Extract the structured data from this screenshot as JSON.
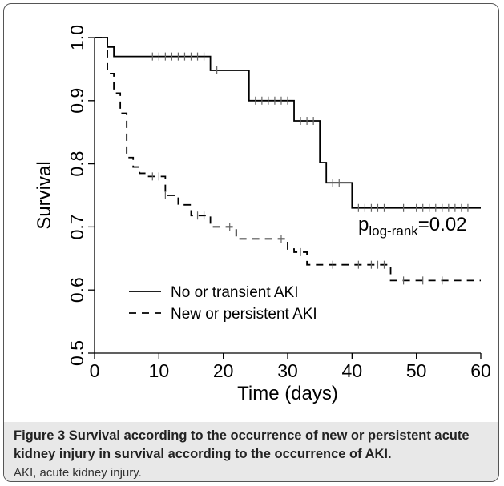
{
  "chart_data": {
    "type": "line",
    "subtype": "kaplan-meier step survival curve",
    "xlabel": "Time (days)",
    "ylabel": "Survival",
    "xlim": [
      0,
      60
    ],
    "ylim": [
      0.5,
      1.0
    ],
    "xticks": [
      "0",
      "10",
      "20",
      "30",
      "40",
      "50",
      "60"
    ],
    "yticks": [
      "0.5",
      "0.6",
      "0.7",
      "0.8",
      "0.9",
      "1.0"
    ],
    "annotation": {
      "p_base": "p",
      "p_subscript": "log-rank",
      "p_value": "=0.02"
    },
    "legend_position": "bottom-left",
    "series": [
      {
        "name": "No or transient AKI",
        "line_style": "solid",
        "color": "#000000",
        "steps": [
          [
            0,
            1.0
          ],
          [
            2,
            0.985
          ],
          [
            3,
            0.97
          ],
          [
            18,
            0.948
          ],
          [
            24,
            0.9
          ],
          [
            31,
            0.868
          ],
          [
            35,
            0.802
          ],
          [
            36,
            0.77
          ],
          [
            40,
            0.73
          ],
          [
            60,
            0.73
          ]
        ],
        "censored": [
          9,
          10,
          11,
          12,
          13,
          14,
          15,
          16,
          17,
          19,
          25,
          26,
          27,
          28,
          29,
          30,
          32,
          33,
          34,
          37,
          38,
          41,
          42,
          43,
          44,
          45,
          48,
          50,
          51,
          52,
          53,
          54,
          55,
          56,
          57,
          58
        ]
      },
      {
        "name": "New or persistent AKI",
        "line_style": "dashed",
        "color": "#000000",
        "steps": [
          [
            0,
            1.0
          ],
          [
            2,
            0.943
          ],
          [
            3,
            0.912
          ],
          [
            4,
            0.88
          ],
          [
            5,
            0.81
          ],
          [
            6,
            0.795
          ],
          [
            7,
            0.785
          ],
          [
            8,
            0.78
          ],
          [
            11,
            0.75
          ],
          [
            13,
            0.735
          ],
          [
            15,
            0.718
          ],
          [
            18,
            0.7
          ],
          [
            22,
            0.681
          ],
          [
            30,
            0.665
          ],
          [
            31,
            0.66
          ],
          [
            33,
            0.64
          ],
          [
            46,
            0.615
          ],
          [
            60,
            0.615
          ]
        ],
        "censored": [
          9,
          10,
          11,
          16,
          17,
          21,
          29,
          32,
          37,
          41,
          43,
          44,
          45,
          48,
          51,
          54
        ]
      }
    ]
  },
  "caption": {
    "label": "Figure 3",
    "title": "Survival according to the occurrence of new or persistent acute kidney injury in survival according to the occurrence of AKI.",
    "abbreviations": "AKI, acute kidney injury."
  }
}
